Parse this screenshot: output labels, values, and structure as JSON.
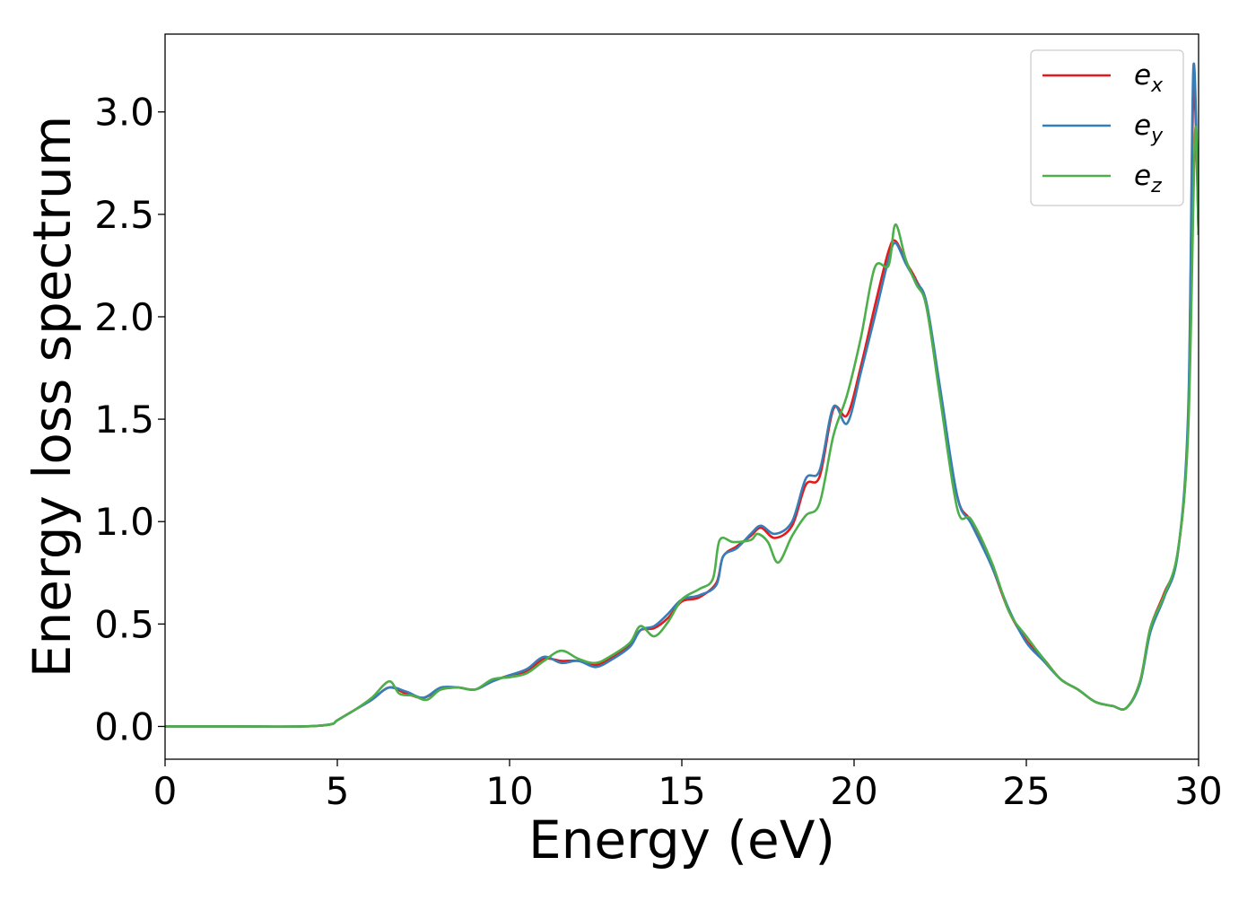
{
  "chart_data": {
    "type": "line",
    "xlabel": "Energy (eV)",
    "ylabel": "Energy loss spectrum",
    "xlim": [
      0,
      30
    ],
    "ylim": [
      -0.16,
      3.38
    ],
    "xticks": [
      0,
      5,
      10,
      15,
      20,
      25,
      30
    ],
    "xtick_labels": [
      "0",
      "5",
      "10",
      "15",
      "20",
      "25",
      "30"
    ],
    "yticks": [
      0.0,
      0.5,
      1.0,
      1.5,
      2.0,
      2.5,
      3.0
    ],
    "ytick_labels": [
      "0.0",
      "0.5",
      "1.0",
      "1.5",
      "2.0",
      "2.5",
      "3.0"
    ],
    "grid": false,
    "legend_position": "top-right",
    "series": [
      {
        "name": "e",
        "subscript": "x",
        "color": "#e41a1c",
        "x": [
          0,
          2,
          4,
          4.8,
          5.0,
          5.5,
          6.0,
          6.5,
          7.0,
          7.5,
          8.0,
          8.5,
          9.0,
          9.5,
          10.0,
          10.5,
          11.0,
          11.5,
          12.0,
          12.5,
          13.0,
          13.5,
          13.8,
          14.2,
          14.6,
          15.0,
          15.5,
          16.0,
          16.2,
          16.6,
          17.0,
          17.3,
          17.7,
          18.2,
          18.6,
          19.0,
          19.4,
          19.8,
          20.2,
          20.6,
          21.0,
          21.2,
          21.5,
          21.8,
          22.1,
          22.5,
          23.0,
          23.4,
          24.0,
          24.5,
          25.0,
          25.5,
          26.0,
          26.5,
          27.0,
          27.5,
          27.9,
          28.3,
          28.6,
          29.0,
          29.4,
          29.7,
          29.85,
          30.0
        ],
        "y": [
          0.0,
          0.0,
          0.0,
          0.01,
          0.03,
          0.08,
          0.13,
          0.19,
          0.16,
          0.14,
          0.18,
          0.19,
          0.18,
          0.22,
          0.25,
          0.27,
          0.33,
          0.32,
          0.32,
          0.3,
          0.34,
          0.4,
          0.47,
          0.48,
          0.53,
          0.61,
          0.63,
          0.7,
          0.83,
          0.88,
          0.93,
          0.97,
          0.92,
          0.98,
          1.18,
          1.22,
          1.55,
          1.52,
          1.76,
          2.05,
          2.32,
          2.37,
          2.27,
          2.18,
          2.05,
          1.62,
          1.12,
          1.0,
          0.78,
          0.56,
          0.42,
          0.33,
          0.23,
          0.18,
          0.12,
          0.1,
          0.09,
          0.22,
          0.48,
          0.65,
          0.85,
          1.5,
          3.1,
          2.4
        ]
      },
      {
        "name": "e",
        "subscript": "y",
        "color": "#377eb8",
        "x": [
          0,
          2,
          4,
          4.8,
          5.0,
          5.5,
          6.0,
          6.5,
          7.0,
          7.5,
          8.0,
          8.5,
          9.0,
          9.5,
          10.0,
          10.5,
          11.0,
          11.5,
          12.0,
          12.5,
          13.0,
          13.5,
          13.8,
          14.2,
          14.6,
          15.0,
          15.5,
          16.0,
          16.2,
          16.6,
          17.0,
          17.3,
          17.7,
          18.2,
          18.6,
          19.0,
          19.4,
          19.8,
          20.2,
          20.6,
          21.0,
          21.2,
          21.5,
          21.8,
          22.1,
          22.5,
          23.0,
          23.4,
          24.0,
          24.5,
          25.0,
          25.5,
          26.0,
          26.5,
          27.0,
          27.5,
          27.9,
          28.3,
          28.6,
          29.0,
          29.4,
          29.7,
          29.85,
          30.0
        ],
        "y": [
          0.0,
          0.0,
          0.0,
          0.01,
          0.03,
          0.08,
          0.13,
          0.19,
          0.17,
          0.14,
          0.19,
          0.19,
          0.18,
          0.22,
          0.25,
          0.28,
          0.34,
          0.31,
          0.32,
          0.29,
          0.33,
          0.39,
          0.47,
          0.49,
          0.55,
          0.62,
          0.64,
          0.69,
          0.83,
          0.87,
          0.94,
          0.98,
          0.94,
          1.0,
          1.21,
          1.25,
          1.56,
          1.48,
          1.73,
          2.0,
          2.28,
          2.36,
          2.26,
          2.17,
          2.07,
          1.65,
          1.12,
          0.99,
          0.78,
          0.57,
          0.41,
          0.32,
          0.23,
          0.18,
          0.12,
          0.1,
          0.09,
          0.21,
          0.46,
          0.63,
          0.85,
          1.55,
          3.22,
          2.4
        ]
      },
      {
        "name": "e",
        "subscript": "z",
        "color": "#4daf4a",
        "x": [
          0,
          2,
          4,
          4.8,
          5.0,
          5.5,
          6.0,
          6.5,
          6.8,
          7.2,
          7.6,
          8.0,
          8.5,
          9.0,
          9.5,
          10.0,
          10.5,
          11.0,
          11.5,
          12.0,
          12.5,
          13.0,
          13.5,
          13.8,
          14.2,
          14.6,
          15.0,
          15.5,
          15.9,
          16.1,
          16.5,
          17.0,
          17.2,
          17.5,
          17.8,
          18.2,
          18.6,
          19.0,
          19.4,
          19.8,
          20.2,
          20.6,
          21.0,
          21.2,
          21.5,
          21.8,
          22.1,
          22.5,
          23.0,
          23.4,
          24.0,
          24.5,
          25.0,
          25.5,
          26.0,
          26.5,
          27.0,
          27.5,
          27.9,
          28.3,
          28.6,
          29.0,
          29.4,
          29.7,
          29.9,
          30.0
        ],
        "y": [
          0.0,
          0.0,
          0.0,
          0.01,
          0.03,
          0.08,
          0.14,
          0.22,
          0.16,
          0.15,
          0.13,
          0.18,
          0.19,
          0.18,
          0.23,
          0.24,
          0.26,
          0.32,
          0.37,
          0.33,
          0.31,
          0.35,
          0.41,
          0.49,
          0.44,
          0.51,
          0.62,
          0.67,
          0.72,
          0.91,
          0.9,
          0.91,
          0.94,
          0.9,
          0.8,
          0.93,
          1.03,
          1.09,
          1.42,
          1.62,
          1.9,
          2.24,
          2.25,
          2.45,
          2.28,
          2.16,
          2.05,
          1.6,
          1.06,
          1.01,
          0.8,
          0.56,
          0.44,
          0.33,
          0.23,
          0.18,
          0.12,
          0.1,
          0.09,
          0.22,
          0.48,
          0.64,
          0.86,
          1.45,
          2.9,
          2.4
        ]
      }
    ]
  }
}
